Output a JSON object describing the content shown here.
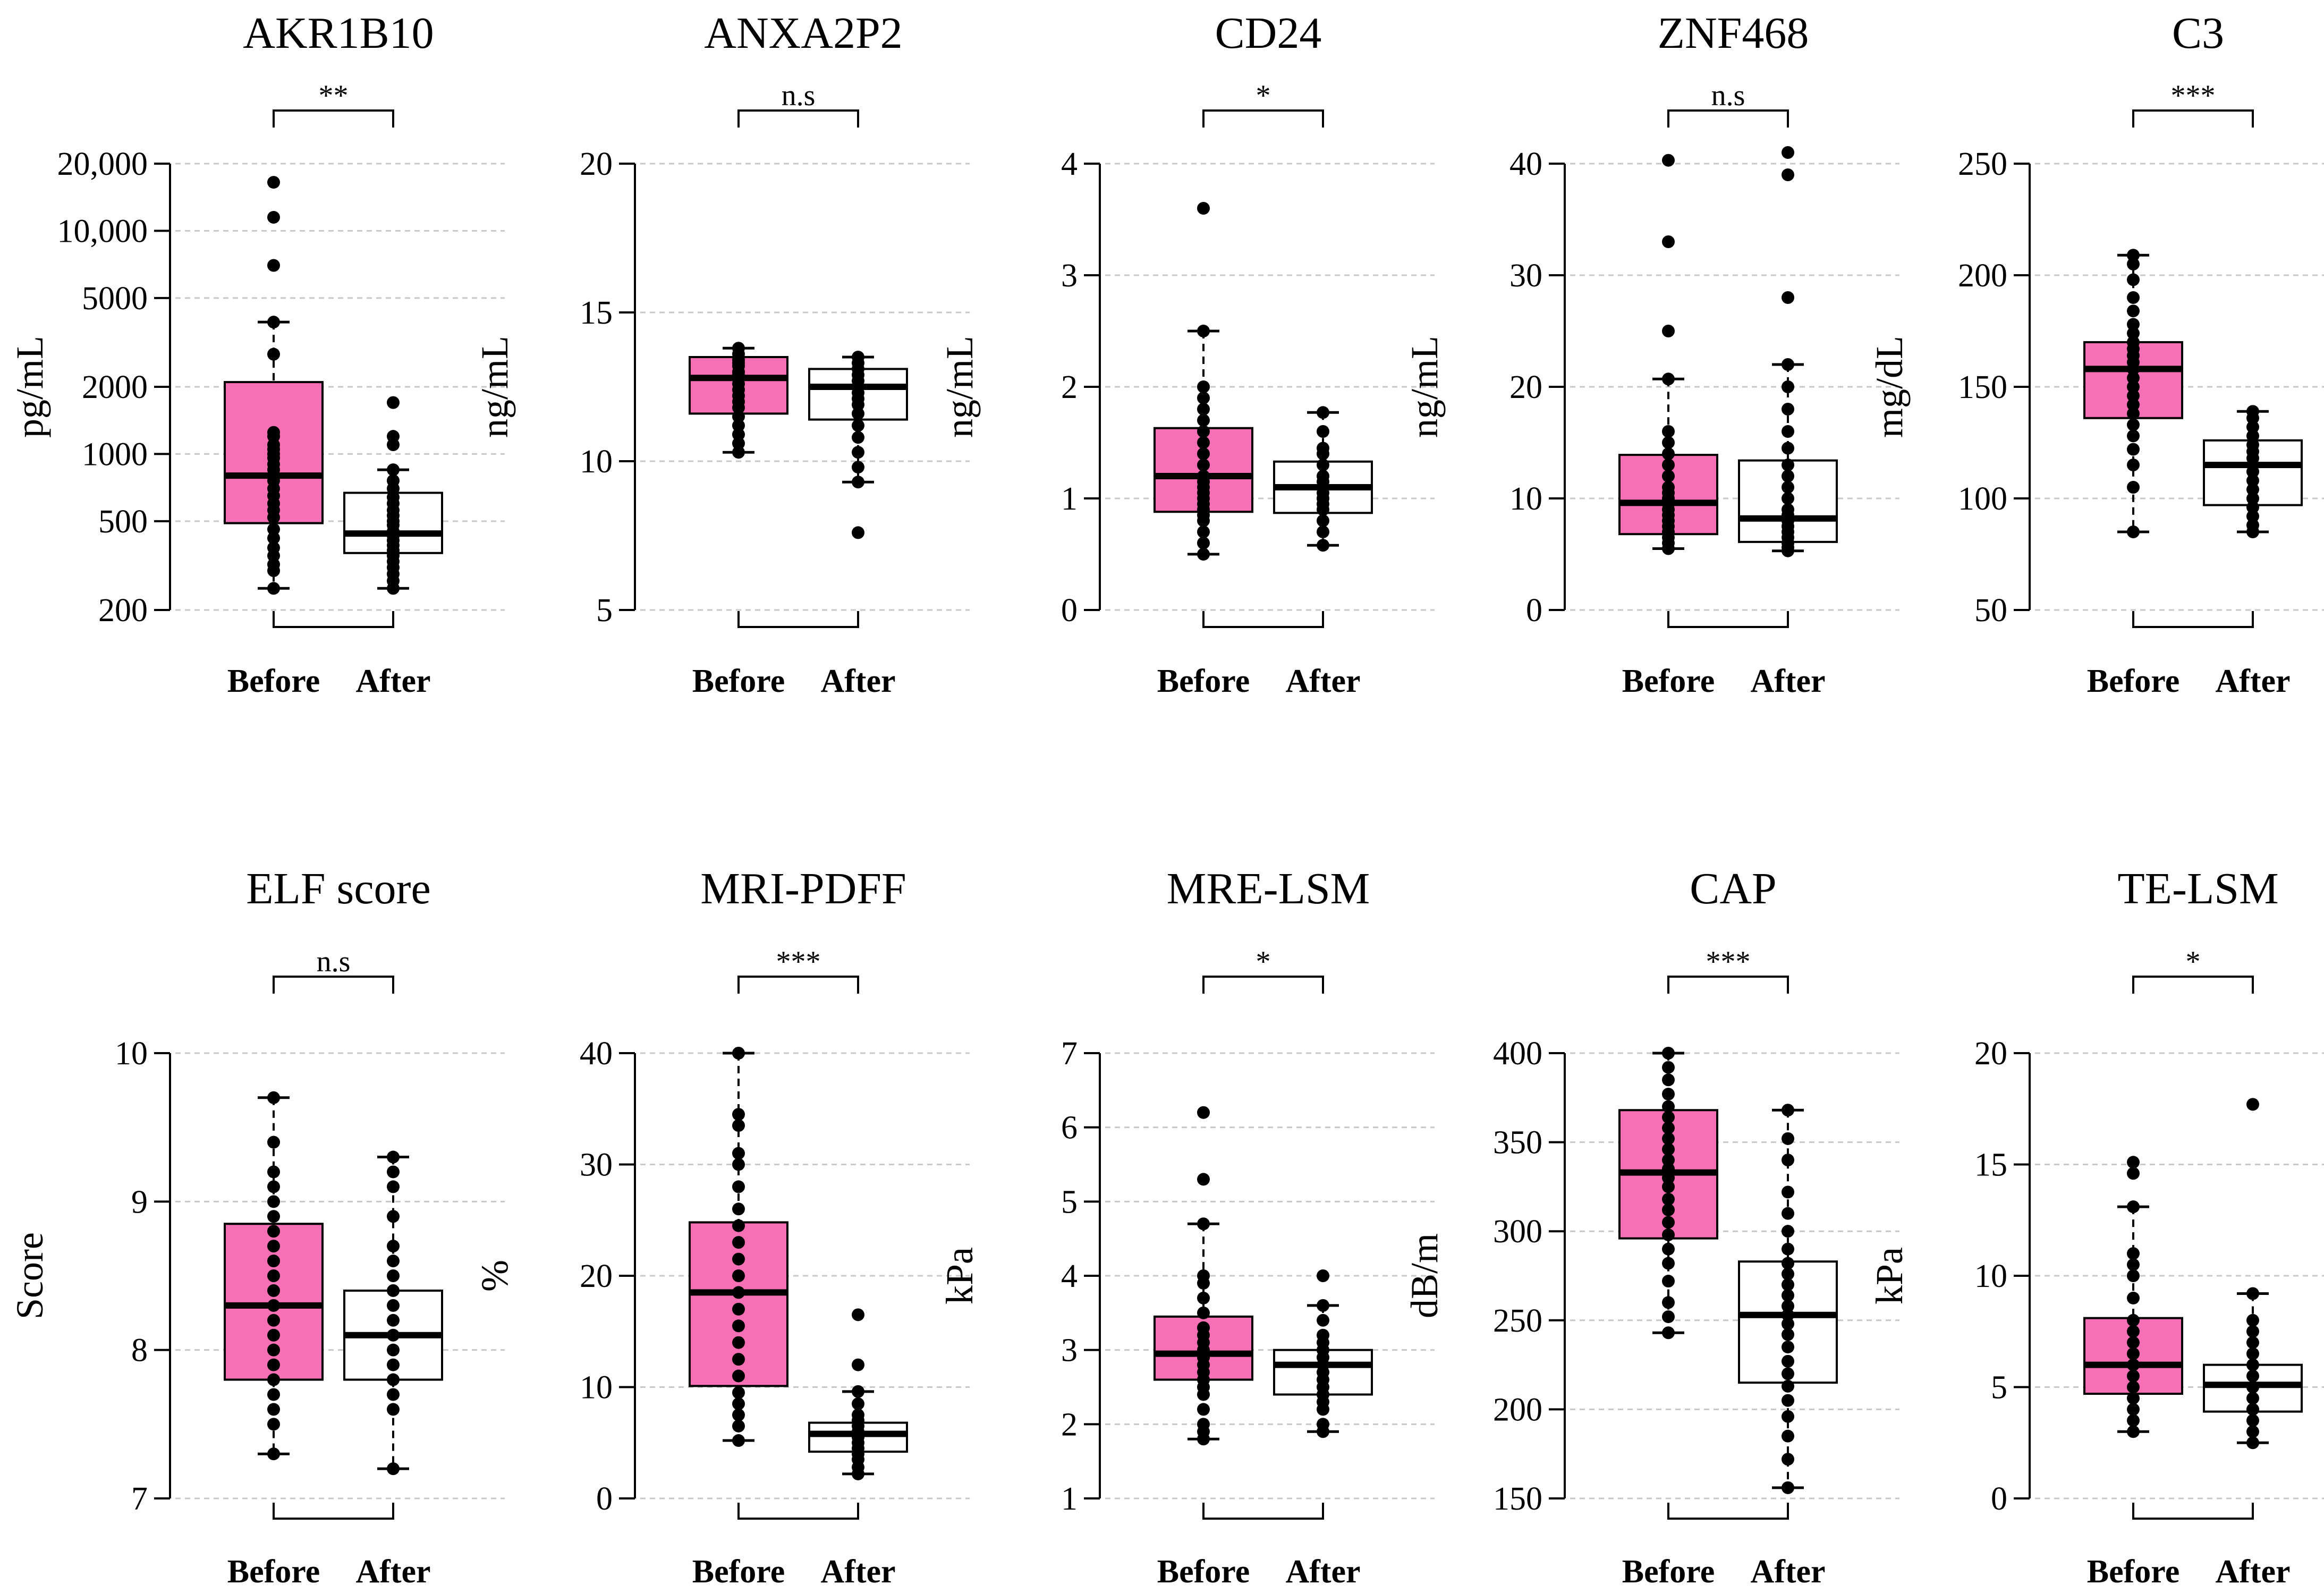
{
  "colors": {
    "before_fill": "#f76fb4",
    "after_fill": "#ffffff",
    "grid": "#c8c8c8",
    "ink": "#000000"
  },
  "groups": [
    "Before",
    "After"
  ],
  "chart_data": [
    {
      "type": "box",
      "title": "AKR1B10",
      "ylabel": "pg/mL",
      "scale": "log",
      "ylim": [
        200,
        20000
      ],
      "yticks": [
        200,
        500,
        1000,
        2000,
        5000,
        10000,
        20000
      ],
      "ytick_labels": [
        "200",
        "500",
        "1000",
        "2000",
        "5000",
        "10,000",
        "20,000"
      ],
      "significance": "**",
      "boxes": [
        {
          "group": "Before",
          "whisker_low": 250,
          "q1": 490,
          "median": 800,
          "q3": 2100,
          "whisker_high": 3900,
          "points": [
            250,
            300,
            320,
            350,
            380,
            420,
            460,
            520,
            560,
            600,
            650,
            700,
            760,
            800,
            850,
            900,
            960,
            1000,
            1050,
            1100,
            1200,
            1250,
            2800,
            3900,
            7000,
            11500,
            16500
          ]
        },
        {
          "group": "After",
          "whisker_low": 250,
          "q1": 360,
          "median": 440,
          "q3": 670,
          "whisker_high": 850,
          "points": [
            250,
            270,
            290,
            310,
            330,
            350,
            370,
            390,
            410,
            430,
            450,
            480,
            500,
            530,
            560,
            600,
            640,
            700,
            760,
            850,
            1100,
            1200,
            1700
          ]
        }
      ]
    },
    {
      "type": "box",
      "title": "ANXA2P2",
      "ylabel": "ng/mL",
      "scale": "linear",
      "ylim": [
        5,
        20
      ],
      "yticks": [
        5,
        10,
        15,
        20
      ],
      "ytick_labels": [
        "5",
        "10",
        "15",
        "20"
      ],
      "significance": "n.s",
      "boxes": [
        {
          "group": "Before",
          "whisker_low": 10.3,
          "q1": 11.6,
          "median": 12.8,
          "q3": 13.5,
          "whisker_high": 13.8,
          "points": [
            10.3,
            10.6,
            10.9,
            11.2,
            11.5,
            11.8,
            12.0,
            12.2,
            12.4,
            12.6,
            12.8,
            12.9,
            13.0,
            13.2,
            13.3,
            13.4,
            13.6,
            13.8
          ]
        },
        {
          "group": "After",
          "whisker_low": 9.3,
          "q1": 11.4,
          "median": 12.5,
          "q3": 13.1,
          "whisker_high": 13.5,
          "points": [
            7.6,
            9.3,
            9.8,
            10.3,
            10.8,
            11.2,
            11.6,
            11.9,
            12.1,
            12.3,
            12.5,
            12.7,
            12.9,
            13.1,
            13.3,
            13.5
          ]
        }
      ]
    },
    {
      "type": "box",
      "title": "CD24",
      "ylabel": "ng/mL",
      "scale": "linear",
      "ylim": [
        0,
        4
      ],
      "yticks": [
        0,
        1,
        2,
        3,
        4
      ],
      "ytick_labels": [
        "0",
        "1",
        "2",
        "3",
        "4"
      ],
      "significance": "*",
      "boxes": [
        {
          "group": "Before",
          "whisker_low": 0.5,
          "q1": 0.88,
          "median": 1.2,
          "q3": 1.63,
          "whisker_high": 2.5,
          "points": [
            0.5,
            0.6,
            0.7,
            0.8,
            0.85,
            0.9,
            0.95,
            1.0,
            1.05,
            1.1,
            1.15,
            1.2,
            1.3,
            1.4,
            1.5,
            1.6,
            1.7,
            1.8,
            1.9,
            2.0,
            2.5,
            3.6
          ]
        },
        {
          "group": "After",
          "whisker_low": 0.58,
          "q1": 0.87,
          "median": 1.1,
          "q3": 1.33,
          "whisker_high": 1.77,
          "points": [
            0.58,
            0.7,
            0.8,
            0.9,
            0.95,
            1.0,
            1.05,
            1.1,
            1.15,
            1.2,
            1.3,
            1.4,
            1.45,
            1.6,
            1.77
          ]
        }
      ]
    },
    {
      "type": "box",
      "title": "ZNF468",
      "ylabel": "ng/mL",
      "scale": "linear",
      "ylim": [
        0,
        40
      ],
      "yticks": [
        0,
        10,
        20,
        30,
        40
      ],
      "ytick_labels": [
        "0",
        "10",
        "20",
        "30",
        "40"
      ],
      "significance": "n.s",
      "boxes": [
        {
          "group": "Before",
          "whisker_low": 5.5,
          "q1": 6.8,
          "median": 9.6,
          "q3": 13.9,
          "whisker_high": 20.7,
          "points": [
            5.5,
            6.0,
            6.5,
            7.0,
            7.5,
            8.0,
            8.5,
            9.0,
            9.5,
            10.0,
            10.5,
            11.0,
            12.0,
            13.0,
            14.0,
            15.0,
            16.0,
            20.7,
            25.0,
            33.0,
            40.3
          ]
        },
        {
          "group": "After",
          "whisker_low": 5.3,
          "q1": 6.1,
          "median": 8.2,
          "q3": 13.4,
          "whisker_high": 22.0,
          "points": [
            5.3,
            5.6,
            6.0,
            6.5,
            7.0,
            7.5,
            8.0,
            8.5,
            9.0,
            10.0,
            11.0,
            12.0,
            13.0,
            14.5,
            16.0,
            18.0,
            20.0,
            22.0,
            28.0,
            39.0,
            41.0
          ]
        }
      ]
    },
    {
      "type": "box",
      "title": "C3",
      "ylabel": "mg/dL",
      "scale": "linear",
      "ylim": [
        50,
        250
      ],
      "yticks": [
        50,
        100,
        150,
        200,
        250
      ],
      "ytick_labels": [
        "50",
        "100",
        "150",
        "200",
        "250"
      ],
      "significance": "***",
      "boxes": [
        {
          "group": "Before",
          "whisker_low": 85,
          "q1": 136,
          "median": 158,
          "q3": 170,
          "whisker_high": 209,
          "points": [
            85,
            105,
            115,
            122,
            128,
            133,
            138,
            142,
            146,
            150,
            154,
            158,
            161,
            164,
            167,
            170,
            174,
            178,
            184,
            190,
            198,
            205,
            209
          ]
        },
        {
          "group": "After",
          "whisker_low": 85,
          "q1": 97,
          "median": 115,
          "q3": 126,
          "whisker_high": 139,
          "points": [
            85,
            88,
            92,
            96,
            100,
            104,
            108,
            112,
            115,
            118,
            121,
            124,
            128,
            132,
            136,
            139
          ]
        }
      ]
    },
    {
      "type": "box",
      "title": "ELF score",
      "ylabel": "Score",
      "scale": "linear",
      "ylim": [
        7,
        10
      ],
      "yticks": [
        7,
        8,
        9,
        10
      ],
      "ytick_labels": [
        "7",
        "8",
        "9",
        "10"
      ],
      "significance": "n.s",
      "boxes": [
        {
          "group": "Before",
          "whisker_low": 7.3,
          "q1": 7.8,
          "median": 8.3,
          "q3": 8.85,
          "whisker_high": 9.7,
          "points": [
            7.3,
            7.5,
            7.6,
            7.7,
            7.8,
            7.9,
            8.0,
            8.1,
            8.2,
            8.3,
            8.4,
            8.5,
            8.6,
            8.7,
            8.8,
            8.9,
            9.0,
            9.1,
            9.2,
            9.4,
            9.7
          ]
        },
        {
          "group": "After",
          "whisker_low": 7.2,
          "q1": 7.8,
          "median": 8.1,
          "q3": 8.4,
          "whisker_high": 9.3,
          "points": [
            7.2,
            7.6,
            7.7,
            7.8,
            7.9,
            8.0,
            8.1,
            8.2,
            8.3,
            8.4,
            8.5,
            8.6,
            8.7,
            8.9,
            9.1,
            9.2,
            9.3
          ]
        }
      ]
    },
    {
      "type": "box",
      "title": "MRI-PDFF",
      "ylabel": "%",
      "scale": "linear",
      "ylim": [
        0,
        40
      ],
      "yticks": [
        0,
        10,
        20,
        30,
        40
      ],
      "ytick_labels": [
        "0",
        "10",
        "20",
        "30",
        "40"
      ],
      "significance": "***",
      "boxes": [
        {
          "group": "Before",
          "whisker_low": 5.2,
          "q1": 10.1,
          "median": 18.5,
          "q3": 24.8,
          "whisker_high": 40,
          "points": [
            5.2,
            6.5,
            7.5,
            8.5,
            9.5,
            11.0,
            12.5,
            14.0,
            15.5,
            17.0,
            18.5,
            20.0,
            21.5,
            23.0,
            24.5,
            26.0,
            28.0,
            30.0,
            31.0,
            33.5,
            34.5,
            40.0
          ]
        },
        {
          "group": "After",
          "whisker_low": 2.2,
          "q1": 4.2,
          "median": 5.8,
          "q3": 6.8,
          "whisker_high": 9.6,
          "points": [
            2.2,
            2.8,
            3.5,
            4.0,
            4.5,
            5.0,
            5.5,
            6.0,
            6.5,
            7.0,
            7.5,
            8.5,
            9.6,
            12.0,
            16.5
          ]
        }
      ]
    },
    {
      "type": "box",
      "title": "MRE-LSM",
      "ylabel": "kPa",
      "scale": "linear",
      "ylim": [
        1,
        7
      ],
      "yticks": [
        1,
        2,
        3,
        4,
        5,
        6,
        7
      ],
      "ytick_labels": [
        "1",
        "2",
        "3",
        "4",
        "5",
        "6",
        "7"
      ],
      "significance": "*",
      "boxes": [
        {
          "group": "Before",
          "whisker_low": 1.8,
          "q1": 2.6,
          "median": 2.95,
          "q3": 3.45,
          "whisker_high": 4.7,
          "points": [
            1.8,
            1.9,
            2.0,
            2.2,
            2.4,
            2.5,
            2.6,
            2.7,
            2.8,
            2.9,
            3.0,
            3.1,
            3.2,
            3.3,
            3.5,
            3.7,
            3.9,
            4.0,
            4.7,
            5.3,
            6.2
          ]
        },
        {
          "group": "After",
          "whisker_low": 1.9,
          "q1": 2.4,
          "median": 2.8,
          "q3": 3.0,
          "whisker_high": 3.6,
          "points": [
            1.9,
            2.0,
            2.2,
            2.3,
            2.4,
            2.5,
            2.6,
            2.7,
            2.8,
            2.9,
            3.0,
            3.1,
            3.2,
            3.4,
            3.6,
            4.0
          ]
        }
      ]
    },
    {
      "type": "box",
      "title": "CAP",
      "ylabel": "dB/m",
      "scale": "linear",
      "ylim": [
        150,
        400
      ],
      "yticks": [
        150,
        200,
        250,
        300,
        350,
        400
      ],
      "ytick_labels": [
        "150",
        "200",
        "250",
        "300",
        "350",
        "400"
      ],
      "significance": "***",
      "boxes": [
        {
          "group": "Before",
          "whisker_low": 243,
          "q1": 296,
          "median": 333,
          "q3": 368,
          "whisker_high": 400,
          "points": [
            243,
            252,
            260,
            272,
            282,
            290,
            298,
            305,
            312,
            318,
            325,
            330,
            335,
            340,
            346,
            352,
            358,
            364,
            370,
            377,
            385,
            392,
            400
          ]
        },
        {
          "group": "After",
          "whisker_low": 156,
          "q1": 215,
          "median": 253,
          "q3": 283,
          "whisker_high": 368,
          "points": [
            156,
            172,
            185,
            196,
            205,
            213,
            220,
            227,
            235,
            242,
            248,
            253,
            258,
            264,
            270,
            276,
            282,
            290,
            300,
            310,
            322,
            340,
            352,
            368
          ]
        }
      ]
    },
    {
      "type": "box",
      "title": "TE-LSM",
      "ylabel": "kPa",
      "scale": "linear",
      "ylim": [
        0,
        20
      ],
      "yticks": [
        0,
        5,
        10,
        15,
        20
      ],
      "ytick_labels": [
        "0",
        "5",
        "10",
        "15",
        "20"
      ],
      "significance": "*",
      "boxes": [
        {
          "group": "Before",
          "whisker_low": 3.0,
          "q1": 4.7,
          "median": 6.0,
          "q3": 8.1,
          "whisker_high": 13.1,
          "points": [
            3.0,
            3.5,
            4.0,
            4.5,
            5.0,
            5.5,
            6.0,
            6.5,
            7.0,
            7.5,
            8.0,
            9.0,
            10.0,
            10.5,
            11.0,
            13.1,
            14.6,
            15.1
          ]
        },
        {
          "group": "After",
          "whisker_low": 2.5,
          "q1": 3.9,
          "median": 5.1,
          "q3": 6.0,
          "whisker_high": 9.2,
          "points": [
            2.5,
            3.0,
            3.5,
            4.0,
            4.5,
            5.0,
            5.5,
            6.0,
            6.5,
            7.0,
            7.5,
            8.0,
            9.2,
            17.7
          ]
        }
      ]
    }
  ]
}
